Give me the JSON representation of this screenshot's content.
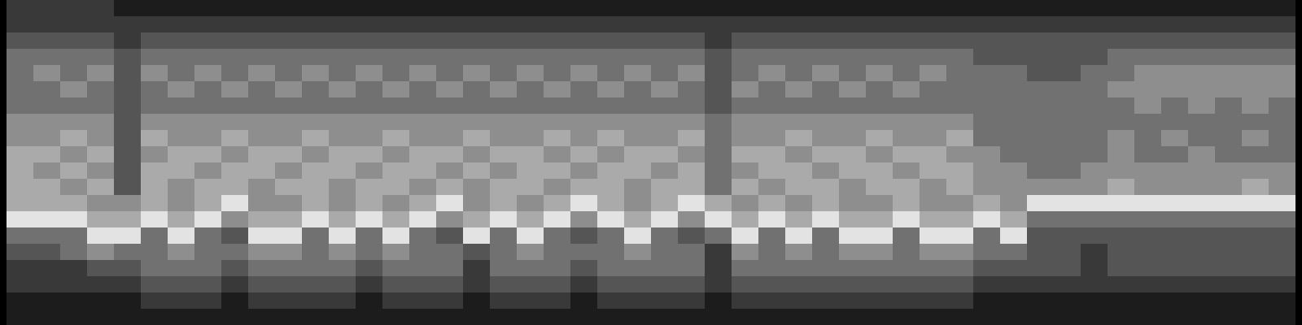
{
  "chart_data": {
    "type": "heatmap",
    "tick_labels": false,
    "zlim": [
      0,
      9
    ],
    "cells": [
      [
        2,
        2,
        2,
        2,
        1,
        1,
        1,
        1,
        1,
        1,
        1,
        1,
        1,
        1,
        1,
        1,
        1,
        1,
        1,
        1,
        1,
        1,
        1,
        1,
        1,
        1,
        1,
        1,
        1,
        1,
        1,
        1,
        1,
        1,
        1,
        1,
        1,
        1,
        1,
        1,
        1,
        1,
        1,
        1,
        1,
        1,
        1,
        1
      ],
      [
        2,
        2,
        2,
        2,
        2,
        2,
        2,
        2,
        2,
        2,
        2,
        2,
        2,
        2,
        2,
        2,
        2,
        2,
        2,
        2,
        2,
        2,
        2,
        2,
        2,
        2,
        2,
        2,
        2,
        2,
        2,
        2,
        2,
        2,
        2,
        2,
        2,
        2,
        2,
        2,
        2,
        2,
        2,
        2,
        2,
        2,
        2,
        2
      ],
      [
        3,
        3,
        3,
        3,
        2,
        3,
        3,
        3,
        3,
        3,
        3,
        3,
        3,
        3,
        3,
        3,
        3,
        3,
        3,
        3,
        3,
        3,
        3,
        3,
        3,
        3,
        2,
        3,
        3,
        3,
        3,
        3,
        3,
        3,
        3,
        3,
        3,
        3,
        3,
        3,
        3,
        3,
        3,
        3,
        3,
        3,
        3,
        3
      ],
      [
        4,
        4,
        4,
        4,
        3,
        4,
        4,
        4,
        4,
        4,
        4,
        4,
        4,
        4,
        4,
        4,
        4,
        4,
        4,
        4,
        4,
        4,
        4,
        4,
        4,
        4,
        3,
        4,
        4,
        4,
        4,
        4,
        4,
        4,
        4,
        4,
        3,
        3,
        3,
        3,
        3,
        4,
        4,
        4,
        4,
        4,
        4,
        4
      ],
      [
        4,
        5,
        4,
        5,
        3,
        5,
        4,
        5,
        4,
        5,
        4,
        5,
        4,
        5,
        4,
        5,
        4,
        5,
        4,
        5,
        4,
        5,
        4,
        5,
        4,
        5,
        3,
        4,
        5,
        4,
        5,
        4,
        5,
        4,
        5,
        4,
        4,
        4,
        3,
        3,
        4,
        4,
        5,
        5,
        5,
        5,
        5,
        5
      ],
      [
        4,
        4,
        5,
        4,
        3,
        4,
        5,
        4,
        5,
        4,
        5,
        4,
        5,
        4,
        5,
        4,
        5,
        4,
        5,
        4,
        5,
        4,
        5,
        4,
        5,
        4,
        3,
        5,
        4,
        5,
        4,
        5,
        4,
        5,
        4,
        4,
        4,
        4,
        4,
        4,
        4,
        5,
        5,
        5,
        5,
        5,
        5,
        5
      ],
      [
        4,
        4,
        4,
        4,
        3,
        4,
        4,
        4,
        4,
        4,
        4,
        4,
        4,
        4,
        4,
        4,
        4,
        4,
        4,
        4,
        4,
        4,
        4,
        4,
        4,
        4,
        3,
        4,
        4,
        4,
        4,
        4,
        4,
        4,
        4,
        4,
        4,
        4,
        4,
        4,
        4,
        4,
        5,
        4,
        5,
        4,
        5,
        4
      ],
      [
        5,
        5,
        5,
        5,
        3,
        5,
        5,
        5,
        5,
        5,
        5,
        5,
        5,
        5,
        5,
        5,
        5,
        5,
        5,
        5,
        5,
        5,
        5,
        5,
        5,
        5,
        4,
        5,
        5,
        5,
        5,
        5,
        5,
        5,
        5,
        5,
        4,
        4,
        4,
        4,
        4,
        4,
        4,
        4,
        4,
        4,
        4,
        4
      ],
      [
        5,
        5,
        6,
        5,
        3,
        6,
        5,
        5,
        6,
        5,
        5,
        6,
        5,
        5,
        6,
        5,
        5,
        6,
        5,
        5,
        6,
        5,
        6,
        5,
        5,
        6,
        4,
        5,
        5,
        6,
        5,
        5,
        6,
        5,
        5,
        6,
        4,
        4,
        4,
        4,
        4,
        5,
        4,
        5,
        4,
        4,
        5,
        4
      ],
      [
        6,
        6,
        5,
        6,
        3,
        5,
        6,
        6,
        5,
        6,
        6,
        5,
        6,
        6,
        5,
        6,
        6,
        5,
        6,
        6,
        5,
        6,
        5,
        6,
        6,
        5,
        4,
        6,
        6,
        5,
        6,
        6,
        5,
        6,
        6,
        5,
        5,
        4,
        4,
        4,
        4,
        5,
        4,
        4,
        5,
        4,
        4,
        4
      ],
      [
        6,
        5,
        6,
        5,
        3,
        6,
        6,
        5,
        6,
        6,
        5,
        6,
        6,
        5,
        6,
        6,
        5,
        6,
        5,
        6,
        6,
        5,
        6,
        6,
        5,
        6,
        4,
        5,
        6,
        6,
        5,
        6,
        6,
        5,
        6,
        6,
        5,
        5,
        4,
        4,
        5,
        5,
        5,
        5,
        5,
        5,
        5,
        5
      ],
      [
        6,
        6,
        5,
        6,
        3,
        6,
        5,
        6,
        6,
        5,
        6,
        6,
        5,
        6,
        6,
        5,
        6,
        5,
        6,
        6,
        5,
        6,
        6,
        5,
        6,
        6,
        4,
        6,
        5,
        6,
        6,
        5,
        6,
        6,
        5,
        6,
        5,
        5,
        5,
        5,
        5,
        6,
        5,
        5,
        5,
        5,
        6,
        5
      ],
      [
        6,
        6,
        6,
        5,
        5,
        6,
        5,
        6,
        8,
        5,
        5,
        6,
        5,
        6,
        5,
        6,
        8,
        5,
        6,
        5,
        6,
        8,
        6,
        5,
        6,
        8,
        6,
        5,
        6,
        5,
        6,
        5,
        5,
        6,
        5,
        5,
        6,
        5,
        8,
        8,
        8,
        8,
        8,
        8,
        8,
        8,
        8,
        8
      ],
      [
        8,
        8,
        8,
        6,
        6,
        8,
        6,
        8,
        5,
        6,
        6,
        8,
        6,
        8,
        6,
        8,
        5,
        6,
        8,
        6,
        8,
        5,
        8,
        6,
        8,
        5,
        8,
        6,
        8,
        6,
        8,
        6,
        6,
        8,
        6,
        6,
        8,
        6,
        4,
        4,
        4,
        4,
        4,
        4,
        4,
        4,
        4,
        4
      ],
      [
        4,
        4,
        4,
        8,
        8,
        4,
        8,
        4,
        3,
        8,
        8,
        4,
        8,
        4,
        8,
        4,
        3,
        8,
        4,
        8,
        4,
        3,
        4,
        8,
        4,
        3,
        4,
        8,
        4,
        8,
        4,
        8,
        8,
        4,
        8,
        8,
        4,
        8,
        3,
        3,
        3,
        3,
        3,
        3,
        3,
        3,
        3,
        3
      ],
      [
        3,
        3,
        4,
        5,
        4,
        4,
        5,
        4,
        4,
        5,
        5,
        4,
        5,
        4,
        5,
        4,
        4,
        3,
        4,
        5,
        4,
        4,
        4,
        5,
        4,
        4,
        2,
        5,
        4,
        5,
        4,
        5,
        5,
        4,
        5,
        5,
        4,
        4,
        3,
        3,
        2,
        3,
        3,
        3,
        3,
        3,
        3,
        3
      ],
      [
        2,
        2,
        2,
        3,
        3,
        4,
        4,
        4,
        3,
        4,
        4,
        4,
        4,
        3,
        4,
        4,
        4,
        2,
        4,
        4,
        4,
        3,
        4,
        4,
        4,
        4,
        2,
        4,
        4,
        4,
        4,
        4,
        4,
        4,
        4,
        4,
        3,
        3,
        3,
        3,
        2,
        3,
        3,
        3,
        3,
        3,
        3,
        3
      ],
      [
        2,
        2,
        2,
        2,
        2,
        3,
        3,
        3,
        2,
        3,
        3,
        3,
        3,
        2,
        3,
        3,
        3,
        2,
        3,
        3,
        3,
        2,
        3,
        3,
        3,
        3,
        2,
        3,
        3,
        3,
        3,
        3,
        3,
        3,
        3,
        3,
        2,
        2,
        2,
        2,
        2,
        2,
        2,
        2,
        2,
        2,
        2,
        2
      ],
      [
        1,
        1,
        1,
        1,
        1,
        2,
        2,
        2,
        1,
        2,
        2,
        2,
        2,
        1,
        2,
        2,
        2,
        1,
        2,
        2,
        2,
        1,
        2,
        2,
        2,
        2,
        1,
        2,
        2,
        2,
        2,
        2,
        2,
        2,
        2,
        2,
        1,
        1,
        1,
        1,
        1,
        1,
        1,
        1,
        1,
        1,
        1,
        1
      ],
      [
        1,
        1,
        1,
        1,
        1,
        1,
        1,
        1,
        1,
        1,
        1,
        1,
        1,
        1,
        1,
        1,
        1,
        1,
        1,
        1,
        1,
        1,
        1,
        1,
        1,
        1,
        1,
        1,
        1,
        1,
        1,
        1,
        1,
        1,
        1,
        1,
        1,
        1,
        1,
        1,
        1,
        1,
        1,
        1,
        1,
        1,
        1,
        1
      ]
    ]
  }
}
